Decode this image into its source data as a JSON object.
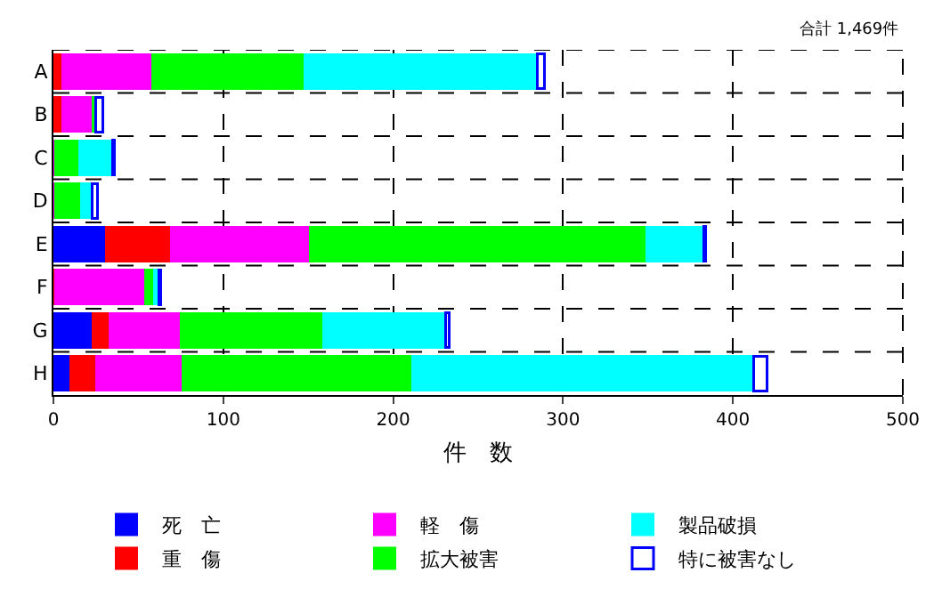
{
  "chart_data": {
    "type": "bar",
    "orientation": "horizontal",
    "stacked": true,
    "categories": [
      "A",
      "B",
      "C",
      "D",
      "E",
      "F",
      "G",
      "H"
    ],
    "series": [
      {
        "name": "死　亡",
        "color": "#0000ff",
        "values": [
          0,
          0,
          0,
          0,
          31,
          0,
          23,
          10
        ]
      },
      {
        "name": "重　傷",
        "color": "#ff0000",
        "values": [
          5,
          5,
          0,
          0,
          38,
          1,
          10,
          15
        ]
      },
      {
        "name": "軽　傷",
        "color": "#ff00ff",
        "values": [
          53,
          18,
          1,
          1,
          82,
          53,
          42,
          51
        ]
      },
      {
        "name": "拡大被害",
        "color": "#00ff00",
        "values": [
          90,
          2,
          14,
          15,
          198,
          5,
          84,
          135
        ]
      },
      {
        "name": "製品破損",
        "color": "#00ffff",
        "values": [
          137,
          0,
          20,
          7,
          34,
          3,
          72,
          201
        ]
      },
      {
        "name": "特に被害なし",
        "color": "#0000ff",
        "values": [
          4,
          4,
          1,
          3,
          1,
          1,
          2,
          8
        ]
      }
    ],
    "xlim": [
      0,
      500
    ],
    "xticks": [
      0,
      100,
      200,
      300,
      400,
      500
    ],
    "xlabel": "件　数",
    "annotations": [
      "合計 1,469件"
    ],
    "grid": true,
    "legend": "bottom"
  }
}
